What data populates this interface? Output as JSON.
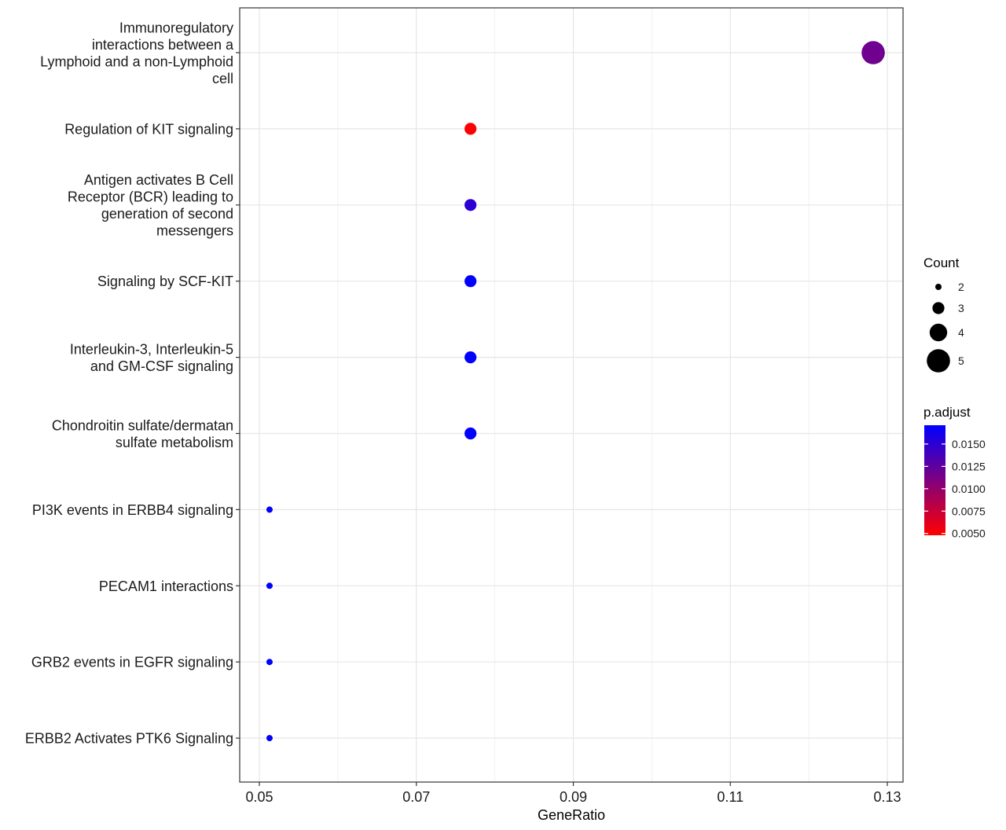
{
  "chart_data": {
    "type": "scatter",
    "title": "",
    "xlabel": "GeneRatio",
    "ylabel": "",
    "xlim": [
      0.0475,
      0.132
    ],
    "x_ticks": [
      "0.05",
      "0.07",
      "0.09",
      "0.11",
      "0.13"
    ],
    "x_tick_values": [
      0.05,
      0.07,
      0.09,
      0.11,
      0.13
    ],
    "x_minor_grid": [
      0.06,
      0.08,
      0.1,
      0.12
    ],
    "grid": true,
    "categories": [
      "Immunoregulatory interactions between a Lymphoid and a non-Lymphoid cell",
      "Regulation of KIT signaling",
      "Antigen activates B Cell Receptor (BCR) leading to generation of second messengers",
      "Signaling by SCF-KIT",
      "Interleukin-3, Interleukin-5 and GM-CSF signaling",
      "Chondroitin sulfate/dermatan sulfate metabolism",
      "PI3K events in ERBB4 signaling",
      "PECAM1 interactions",
      "GRB2 events in EGFR signaling",
      "ERBB2 Activates PTK6 Signaling"
    ],
    "category_lines": [
      [
        "Immunoregulatory",
        "interactions between a",
        "Lymphoid and a non-Lymphoid",
        "cell"
      ],
      [
        "Regulation of KIT signaling"
      ],
      [
        "Antigen activates B Cell",
        "Receptor (BCR) leading to",
        "generation of second",
        "messengers"
      ],
      [
        "Signaling by SCF-KIT"
      ],
      [
        "Interleukin-3, Interleukin-5",
        "and GM-CSF signaling"
      ],
      [
        "Chondroitin sulfate/dermatan",
        "sulfate metabolism"
      ],
      [
        "PI3K events in ERBB4 signaling"
      ],
      [
        "PECAM1 interactions"
      ],
      [
        "GRB2 events in EGFR signaling"
      ],
      [
        "ERBB2 Activates PTK6 Signaling"
      ]
    ],
    "points": [
      {
        "category": "Immunoregulatory interactions between a Lymphoid and a non-Lymphoid cell",
        "x": 0.1282,
        "count": 5,
        "p_adjust": 0.0117
      },
      {
        "category": "Regulation of KIT signaling",
        "x": 0.0769,
        "count": 3,
        "p_adjust": 0.0048
      },
      {
        "category": "Antigen activates B Cell Receptor (BCR) leading to generation of second messengers",
        "x": 0.0769,
        "count": 3,
        "p_adjust": 0.015
      },
      {
        "category": "Signaling by SCF-KIT",
        "x": 0.0769,
        "count": 3,
        "p_adjust": 0.0171
      },
      {
        "category": "Interleukin-3, Interleukin-5 and GM-CSF signaling",
        "x": 0.0769,
        "count": 3,
        "p_adjust": 0.0171
      },
      {
        "category": "Chondroitin sulfate/dermatan sulfate metabolism",
        "x": 0.0769,
        "count": 3,
        "p_adjust": 0.0171
      },
      {
        "category": "PI3K events in ERBB4 signaling",
        "x": 0.0513,
        "count": 2,
        "p_adjust": 0.0171
      },
      {
        "category": "PECAM1 interactions",
        "x": 0.0513,
        "count": 2,
        "p_adjust": 0.0171
      },
      {
        "category": "GRB2 events in EGFR signaling",
        "x": 0.0513,
        "count": 2,
        "p_adjust": 0.0171
      },
      {
        "category": "ERBB2 Activates PTK6 Signaling",
        "x": 0.0513,
        "count": 2,
        "p_adjust": 0.0171
      }
    ],
    "legend_size": {
      "title": "Count",
      "values": [
        2,
        3,
        4,
        5
      ],
      "labels": [
        "2",
        "3",
        "4",
        "5"
      ]
    },
    "legend_color": {
      "title": "p.adjust",
      "range": [
        0.0048,
        0.0171
      ],
      "low_color": "#ff0000",
      "high_color": "#0000ff",
      "ticks": [
        0.005,
        0.0075,
        0.01,
        0.0125,
        0.015
      ],
      "tick_labels": [
        "0.0050",
        "0.0075",
        "0.0100",
        "0.0125",
        "0.0150"
      ]
    },
    "legend_placement": "right"
  }
}
